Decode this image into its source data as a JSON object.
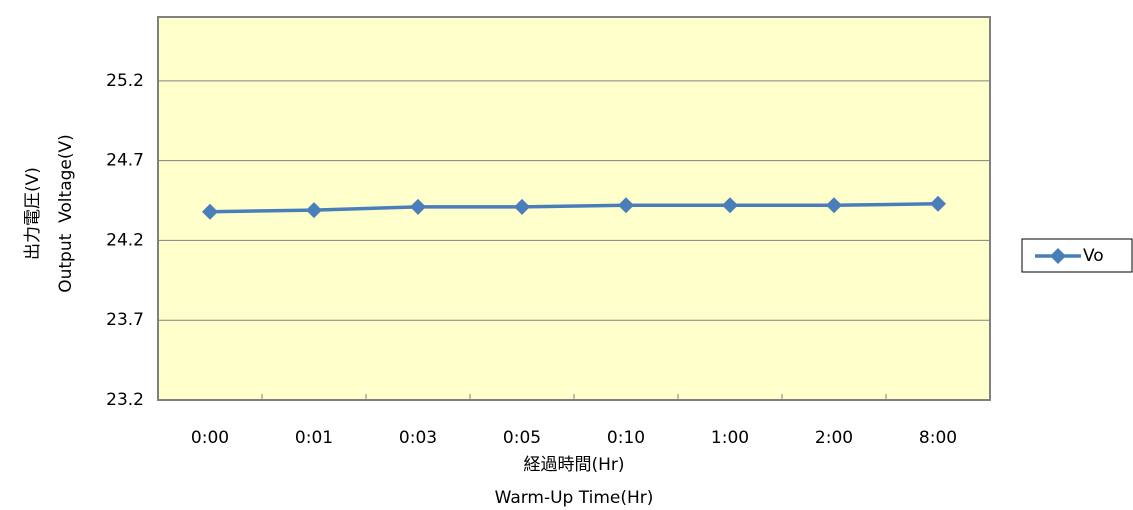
{
  "chart_data": {
    "type": "line",
    "y_label": [
      "出力電圧(V)",
      "Output  Voltage(V)"
    ],
    "x_label": [
      "経過時間(Hr)",
      "Warm-Up Time(Hr)"
    ],
    "categories": [
      "0:00",
      "0:01",
      "0:03",
      "0:05",
      "0:10",
      "1:00",
      "2:00",
      "8:00"
    ],
    "series": [
      {
        "name": "Vo",
        "color": "#4a7ebb",
        "values": [
          24.38,
          24.39,
          24.41,
          24.41,
          24.42,
          24.42,
          24.42,
          24.43
        ]
      }
    ],
    "ylim": [
      23.2,
      25.6
    ],
    "yticks": [
      23.2,
      23.7,
      24.2,
      24.7,
      25.2
    ],
    "grid": true,
    "legend": "right",
    "plot_background": "#ffffcc"
  }
}
